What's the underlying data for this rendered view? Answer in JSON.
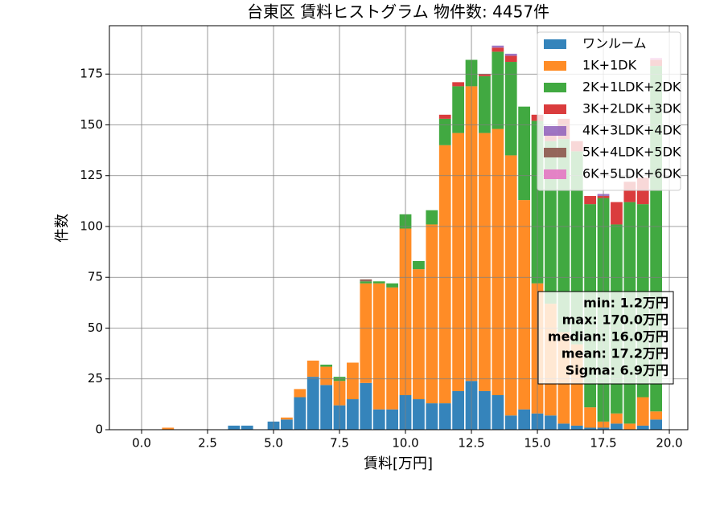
{
  "chart_data": {
    "type": "histogram",
    "title": "台東区 賃料ヒストグラム 物件数: 4457件",
    "x_label": "賃料[万円]",
    "y_label": "件数",
    "bins": [
      -0.25,
      0.25,
      0.75,
      1.25,
      1.75,
      2.25,
      2.75,
      3.25,
      3.75,
      4.25,
      4.75,
      5.25,
      5.75,
      6.25,
      6.75,
      7.25,
      7.75,
      8.25,
      8.75,
      9.25,
      9.75,
      10.25,
      10.75,
      11.25,
      11.75,
      12.25,
      12.75,
      13.25,
      13.75,
      14.25,
      14.75,
      15.25,
      15.75,
      16.25,
      16.75,
      17.25,
      17.75,
      18.25,
      18.75,
      19.25,
      19.75
    ],
    "series": [
      {
        "name": "ワンルーム",
        "color": "#1f77b4",
        "values": [
          0,
          0,
          0,
          0,
          0,
          0,
          0,
          2,
          2,
          0,
          4,
          5,
          16,
          26,
          22,
          12,
          15,
          23,
          10,
          10,
          17,
          15,
          13,
          13,
          19,
          24,
          19,
          17,
          7,
          10,
          8,
          7,
          3,
          2,
          1,
          1,
          3,
          0,
          2,
          5
        ]
      },
      {
        "name": "1K+1DK",
        "color": "#ff7f0e",
        "values": [
          0,
          0,
          1,
          0,
          0,
          0,
          0,
          0,
          0,
          0,
          0,
          1,
          4,
          8,
          9,
          12,
          18,
          49,
          62,
          60,
          82,
          64,
          88,
          127,
          127,
          145,
          127,
          131,
          128,
          103,
          64,
          55,
          45,
          40,
          10,
          3,
          5,
          3,
          14,
          4
        ]
      },
      {
        "name": "2K+1LDK+2DK",
        "color": "#2ca02c",
        "values": [
          0,
          0,
          0,
          0,
          0,
          0,
          0,
          0,
          0,
          0,
          0,
          0,
          0,
          0,
          1,
          2,
          0,
          1,
          1,
          2,
          7,
          4,
          7,
          13,
          23,
          13,
          28,
          38,
          46,
          46,
          80,
          80,
          95,
          95,
          100,
          110,
          93,
          109,
          95,
          170
        ]
      },
      {
        "name": "3K+2LDK+3DK",
        "color": "#d62728",
        "values": [
          0,
          0,
          0,
          0,
          0,
          0,
          0,
          0,
          0,
          0,
          0,
          0,
          0,
          0,
          0,
          0,
          0,
          0,
          0,
          0,
          0,
          0,
          0,
          2,
          2,
          0,
          1,
          2,
          3,
          0,
          3,
          4,
          10,
          5,
          4,
          1,
          11,
          10,
          13,
          3
        ]
      },
      {
        "name": "4K+3LDK+4DK",
        "color": "#9467bd",
        "values": [
          0,
          0,
          0,
          0,
          0,
          0,
          0,
          0,
          0,
          0,
          0,
          0,
          0,
          0,
          0,
          0,
          0,
          0,
          0,
          0,
          0,
          0,
          0,
          0,
          0,
          0,
          0,
          1,
          1,
          0,
          0,
          0,
          0,
          0,
          0,
          1,
          0,
          0,
          0,
          0
        ]
      },
      {
        "name": "5K+4LDK+5DK",
        "color": "#8c564b",
        "values": [
          0,
          0,
          0,
          0,
          0,
          0,
          0,
          0,
          0,
          0,
          0,
          0,
          0,
          0,
          0,
          0,
          0,
          1,
          0,
          0,
          0,
          0,
          0,
          0,
          0,
          0,
          0,
          0,
          0,
          0,
          0,
          0,
          0,
          0,
          0,
          0,
          0,
          0,
          0,
          0
        ]
      },
      {
        "name": "6K+5LDK+6DK",
        "color": "#e377c2",
        "values": [
          0,
          0,
          0,
          0,
          0,
          0,
          0,
          0,
          0,
          0,
          0,
          0,
          0,
          0,
          0,
          0,
          0,
          0,
          0,
          0,
          0,
          0,
          0,
          0,
          0,
          0,
          0,
          0,
          0,
          0,
          0,
          0,
          0,
          0,
          0,
          0,
          0,
          0,
          0,
          1
        ]
      }
    ],
    "xlim": [
      -1.22,
      20.7
    ],
    "ylim": [
      0,
      198.8
    ],
    "xticks": [
      {
        "value": 0,
        "label": "0.0"
      },
      {
        "value": 2.5,
        "label": "2.5"
      },
      {
        "value": 5,
        "label": "5.0"
      },
      {
        "value": 7.5,
        "label": "7.5"
      },
      {
        "value": 10,
        "label": "10.0"
      },
      {
        "value": 12.5,
        "label": "12.5"
      },
      {
        "value": 15,
        "label": "15.0"
      },
      {
        "value": 17.5,
        "label": "17.5"
      },
      {
        "value": 20,
        "label": "20.0"
      }
    ],
    "yticks": [
      0,
      25,
      50,
      75,
      100,
      125,
      150,
      175
    ],
    "grid": true,
    "stacked": true,
    "legend": "upper right",
    "stats": [
      "min: 1.2万円",
      "max: 170.0万円",
      "median: 16.0万円",
      "mean: 17.2万円",
      "Sigma: 6.9万円"
    ]
  }
}
